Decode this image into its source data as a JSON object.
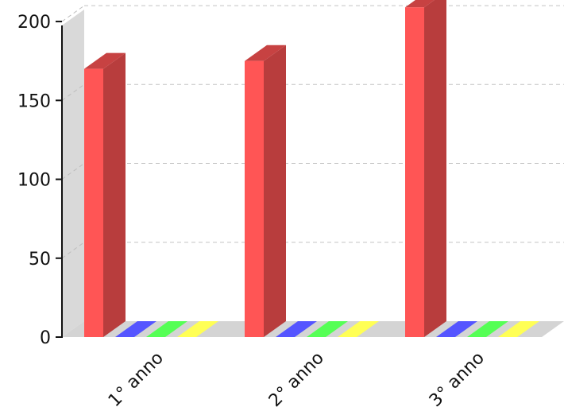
{
  "chart_data": {
    "type": "bar",
    "style": "3d",
    "categories": [
      "1° anno",
      "2° anno",
      "3° anno"
    ],
    "series": [
      {
        "color": "#ff5555",
        "values": [
          170,
          175,
          209
        ]
      },
      {
        "color": "#5555ff",
        "values": [
          0,
          0,
          0
        ]
      },
      {
        "color": "#55ff55",
        "values": [
          0,
          0,
          0
        ]
      },
      {
        "color": "#ffff55",
        "values": [
          0,
          0,
          0
        ]
      }
    ],
    "yticks": [
      0,
      50,
      100,
      150,
      200
    ],
    "ylim": [
      0,
      210
    ],
    "grid": true,
    "title": "",
    "xlabel": "",
    "ylabel": ""
  }
}
